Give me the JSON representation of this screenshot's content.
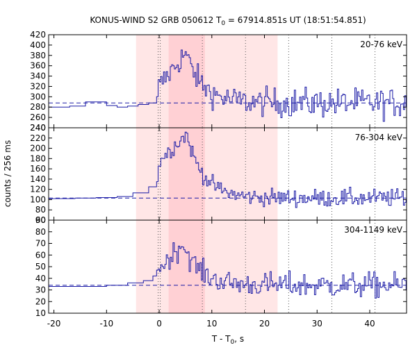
{
  "chart_data": {
    "type": "line",
    "title": {
      "prefix": "KONUS-WIND S2 GRB 050612 T",
      "sub": "0",
      "suffix": " = 67914.851s UT (18:51:54.851)"
    },
    "xlabel": {
      "prefix": "T - T",
      "sub": "0",
      "suffix": ", s"
    },
    "ylabel": "counts / 256 ms",
    "x_range": [
      -21,
      47
    ],
    "x_ticks": [
      -20,
      -10,
      0,
      10,
      20,
      30,
      40
    ],
    "shaded_intervals": [
      {
        "from": -4.4,
        "to": 22.5,
        "shade": "light"
      },
      {
        "from": 1.8,
        "to": 8.7,
        "shade": "dark"
      }
    ],
    "vertical_markers": [
      -0.2,
      0.2,
      8.2,
      16.4,
      24.6,
      32.8,
      41.0
    ],
    "line_color": "#1a1aa6",
    "shade_colors": {
      "light": "#ffe6e6",
      "dark": "#ffd0d4"
    },
    "panels": [
      {
        "band": "20-76 keV",
        "y_range": [
          240,
          420
        ],
        "y_ticks": [
          240,
          260,
          280,
          300,
          320,
          340,
          360,
          380,
          400,
          420
        ],
        "background": 288,
        "pre_trigger": {
          "x": [
            -21,
            -17,
            -14,
            -10,
            -8,
            -6,
            -4,
            -2,
            -0.5
          ],
          "values": [
            280,
            282,
            290,
            283,
            280,
            282,
            285,
            288,
            300
          ]
        },
        "rise_level": 320,
        "peak_time": 5,
        "peak_value": 385,
        "noise": 13
      },
      {
        "band": "76-304 keV",
        "y_range": [
          60,
          240
        ],
        "y_ticks": [
          60,
          80,
          100,
          120,
          140,
          160,
          180,
          200,
          220,
          240
        ],
        "background": 103,
        "pre_trigger": {
          "x": [
            -21,
            -16,
            -12,
            -8,
            -5,
            -2,
            -0.5
          ],
          "values": [
            102,
            103,
            104,
            106,
            113,
            125,
            135
          ]
        },
        "rise_level": 175,
        "peak_time": 5.2,
        "peak_value": 228,
        "noise": 8
      },
      {
        "band": "304-1149 keV",
        "y_range": [
          10,
          90
        ],
        "y_ticks": [
          10,
          20,
          30,
          40,
          50,
          60,
          70,
          80,
          90
        ],
        "background": 34,
        "pre_trigger": {
          "x": [
            -21,
            -16,
            -10,
            -6,
            -3,
            -1.2,
            -0.5
          ],
          "values": [
            33,
            33,
            34,
            36,
            38,
            42,
            47
          ]
        },
        "rise_level": 48,
        "peak_time": 4.5,
        "peak_value": 70,
        "noise": 5
      }
    ]
  }
}
